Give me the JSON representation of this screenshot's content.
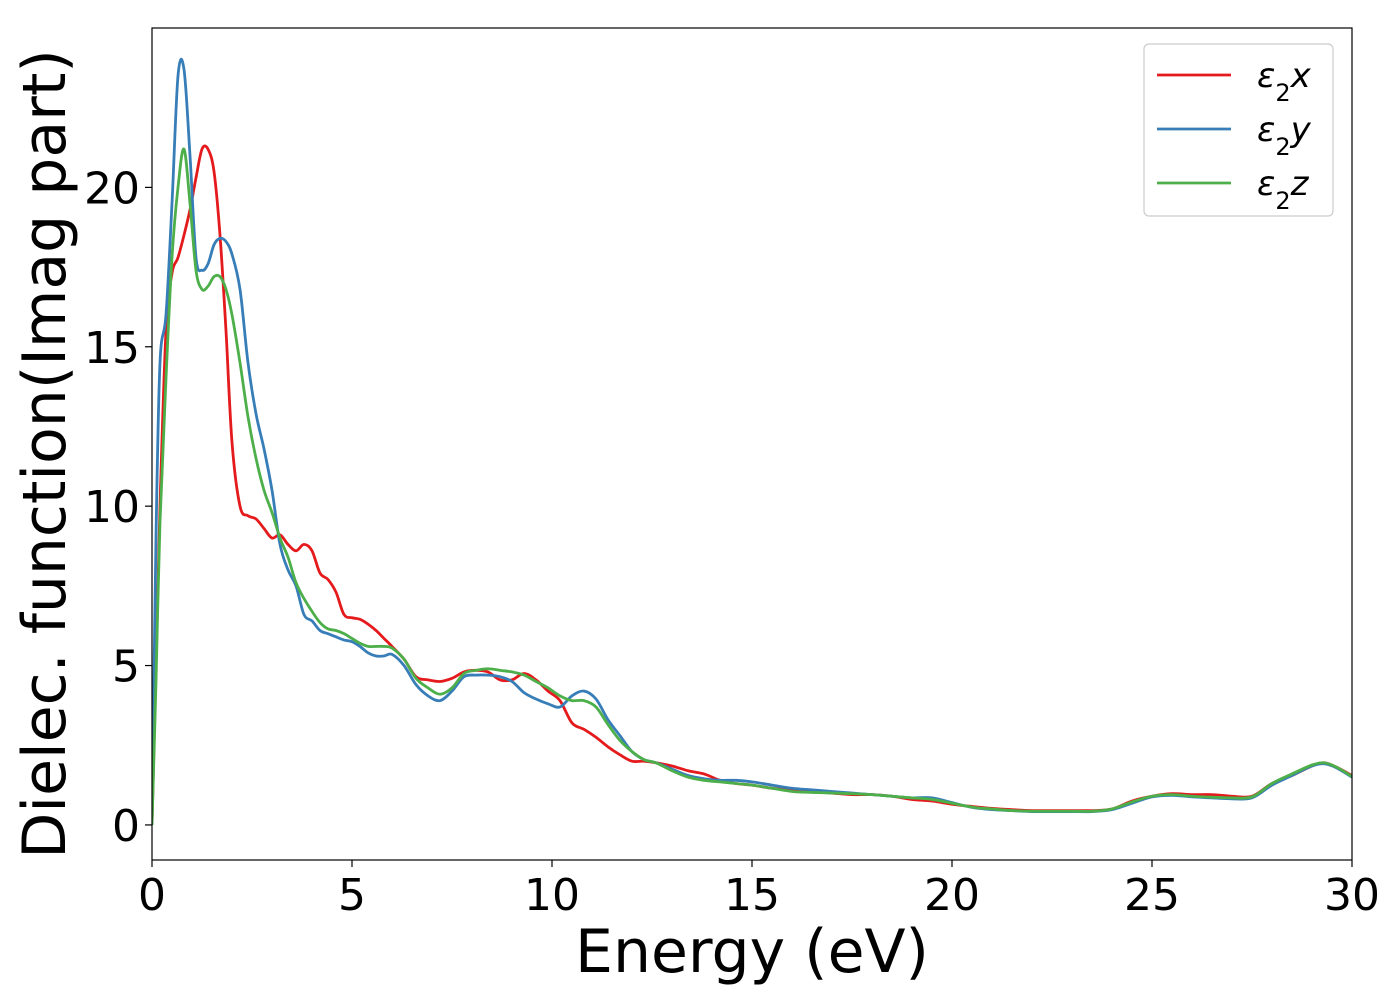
{
  "chart_data": {
    "type": "line",
    "xlabel": "Energy (eV)",
    "ylabel": "Dielec. function(Imag part)",
    "xlim": [
      0,
      30
    ],
    "ylim": [
      -1.1,
      25
    ],
    "xticks": [
      0,
      5,
      10,
      15,
      20,
      25,
      30
    ],
    "yticks": [
      0,
      5,
      10,
      15,
      20
    ],
    "grid": false,
    "legend_position": "top-right",
    "series": [
      {
        "name": "ε₂x",
        "legend": {
          "base": "ε",
          "sub": "2",
          "var": "x"
        },
        "color": "#e41a1c",
        "x": [
          0,
          0.1,
          0.2,
          0.35,
          0.5,
          0.65,
          0.8,
          0.95,
          1.1,
          1.25,
          1.4,
          1.55,
          1.7,
          1.85,
          2.0,
          2.2,
          2.4,
          2.6,
          2.8,
          3.0,
          3.2,
          3.4,
          3.6,
          3.8,
          4.0,
          4.2,
          4.4,
          4.6,
          4.8,
          5.0,
          5.2,
          5.4,
          5.6,
          5.8,
          6.0,
          6.3,
          6.6,
          6.9,
          7.2,
          7.5,
          7.8,
          8.1,
          8.4,
          8.7,
          9.0,
          9.3,
          9.6,
          9.9,
          10.2,
          10.5,
          10.8,
          11.1,
          11.4,
          11.7,
          12.0,
          12.3,
          12.6,
          13.0,
          13.4,
          13.8,
          14.2,
          14.6,
          15.0,
          15.5,
          16.0,
          16.5,
          17.0,
          17.5,
          18.0,
          18.5,
          19.0,
          19.5,
          20.0,
          20.5,
          21.0,
          21.5,
          22.0,
          22.5,
          23.0,
          23.5,
          24.0,
          24.5,
          25.0,
          25.5,
          26.0,
          26.5,
          27.0,
          27.5,
          28.0,
          28.5,
          29.0,
          29.3,
          29.6,
          30.0
        ],
        "y": [
          0,
          5,
          10,
          15.5,
          17.3,
          17.8,
          18.5,
          19.3,
          20.3,
          21.2,
          21.2,
          20.5,
          18.5,
          15.5,
          12.0,
          10.0,
          9.7,
          9.6,
          9.3,
          9.0,
          9.1,
          8.8,
          8.6,
          8.8,
          8.6,
          7.9,
          7.7,
          7.3,
          6.6,
          6.5,
          6.45,
          6.3,
          6.1,
          5.85,
          5.6,
          5.2,
          4.65,
          4.55,
          4.5,
          4.6,
          4.8,
          4.85,
          4.8,
          4.55,
          4.55,
          4.75,
          4.55,
          4.2,
          3.9,
          3.2,
          3.0,
          2.75,
          2.45,
          2.2,
          2.0,
          2.0,
          1.95,
          1.85,
          1.7,
          1.6,
          1.4,
          1.3,
          1.25,
          1.15,
          1.1,
          1.05,
          1.0,
          0.95,
          0.95,
          0.9,
          0.8,
          0.75,
          0.65,
          0.58,
          0.52,
          0.48,
          0.45,
          0.45,
          0.45,
          0.45,
          0.5,
          0.75,
          0.9,
          0.98,
          0.95,
          0.95,
          0.9,
          0.9,
          1.3,
          1.55,
          1.85,
          1.95,
          1.82,
          1.55
        ]
      },
      {
        "name": "ε₂y",
        "legend": {
          "base": "ε",
          "sub": "2",
          "var": "y"
        },
        "color": "#377eb8",
        "x": [
          0,
          0.1,
          0.2,
          0.35,
          0.5,
          0.65,
          0.8,
          0.95,
          1.1,
          1.25,
          1.4,
          1.55,
          1.7,
          1.85,
          2.0,
          2.2,
          2.4,
          2.6,
          2.8,
          3.0,
          3.2,
          3.4,
          3.6,
          3.8,
          4.0,
          4.2,
          4.4,
          4.6,
          4.8,
          5.0,
          5.2,
          5.4,
          5.6,
          5.8,
          6.0,
          6.3,
          6.6,
          6.9,
          7.2,
          7.5,
          7.8,
          8.1,
          8.4,
          8.7,
          9.0,
          9.3,
          9.6,
          9.9,
          10.2,
          10.5,
          10.8,
          11.1,
          11.4,
          11.7,
          12.0,
          12.3,
          12.6,
          13.0,
          13.4,
          13.8,
          14.2,
          14.6,
          15.0,
          15.5,
          16.0,
          16.5,
          17.0,
          17.5,
          18.0,
          18.5,
          19.0,
          19.5,
          20.0,
          20.5,
          21.0,
          21.5,
          22.0,
          22.5,
          23.0,
          23.5,
          24.0,
          24.5,
          25.0,
          25.5,
          26.0,
          26.5,
          27.0,
          27.5,
          28.0,
          28.5,
          29.0,
          29.3,
          29.6,
          30.0
        ],
        "y": [
          0,
          9,
          14.5,
          16.0,
          19.5,
          23.5,
          23.7,
          21.0,
          17.8,
          17.4,
          17.6,
          18.2,
          18.4,
          18.3,
          17.9,
          16.8,
          14.5,
          12.9,
          11.8,
          10.5,
          8.8,
          8.0,
          7.5,
          6.6,
          6.4,
          6.1,
          6.0,
          5.9,
          5.8,
          5.75,
          5.6,
          5.4,
          5.3,
          5.3,
          5.35,
          5.0,
          4.4,
          4.05,
          3.9,
          4.2,
          4.65,
          4.7,
          4.7,
          4.65,
          4.5,
          4.15,
          3.95,
          3.8,
          3.7,
          4.05,
          4.2,
          3.95,
          3.3,
          2.8,
          2.3,
          2.05,
          1.95,
          1.75,
          1.55,
          1.45,
          1.4,
          1.4,
          1.35,
          1.25,
          1.15,
          1.1,
          1.05,
          1.0,
          0.95,
          0.9,
          0.85,
          0.85,
          0.7,
          0.55,
          0.48,
          0.45,
          0.42,
          0.42,
          0.42,
          0.42,
          0.48,
          0.68,
          0.88,
          0.93,
          0.88,
          0.85,
          0.82,
          0.85,
          1.25,
          1.55,
          1.85,
          1.92,
          1.8,
          1.5
        ]
      },
      {
        "name": "ε₂z",
        "legend": {
          "base": "ε",
          "sub": "2",
          "var": "z"
        },
        "color": "#4daf4a",
        "x": [
          0,
          0.1,
          0.2,
          0.35,
          0.5,
          0.65,
          0.8,
          0.95,
          1.1,
          1.25,
          1.4,
          1.55,
          1.7,
          1.85,
          2.0,
          2.2,
          2.4,
          2.6,
          2.8,
          3.0,
          3.2,
          3.4,
          3.6,
          3.8,
          4.0,
          4.2,
          4.4,
          4.6,
          4.8,
          5.0,
          5.2,
          5.4,
          5.6,
          5.8,
          6.0,
          6.3,
          6.6,
          6.9,
          7.2,
          7.5,
          7.8,
          8.1,
          8.4,
          8.7,
          9.0,
          9.3,
          9.6,
          9.9,
          10.2,
          10.5,
          10.8,
          11.1,
          11.4,
          11.7,
          12.0,
          12.3,
          12.6,
          13.0,
          13.4,
          13.8,
          14.2,
          14.6,
          15.0,
          15.5,
          16.0,
          16.5,
          17.0,
          17.5,
          18.0,
          18.5,
          19.0,
          19.5,
          20.0,
          20.5,
          21.0,
          21.5,
          22.0,
          22.5,
          23.0,
          23.5,
          24.0,
          24.5,
          25.0,
          25.5,
          26.0,
          26.5,
          27.0,
          27.5,
          28.0,
          28.5,
          29.0,
          29.3,
          29.6,
          30.0
        ],
        "y": [
          0,
          4.5,
          9.5,
          14.0,
          17.8,
          20.0,
          21.2,
          19.5,
          17.4,
          16.8,
          16.9,
          17.2,
          17.2,
          16.8,
          16.0,
          14.5,
          12.8,
          11.5,
          10.5,
          9.8,
          9.0,
          8.4,
          7.6,
          7.1,
          6.7,
          6.35,
          6.15,
          6.1,
          6.0,
          5.85,
          5.7,
          5.6,
          5.6,
          5.6,
          5.55,
          5.2,
          4.6,
          4.3,
          4.1,
          4.3,
          4.75,
          4.85,
          4.9,
          4.85,
          4.8,
          4.7,
          4.5,
          4.3,
          4.05,
          3.9,
          3.9,
          3.7,
          3.15,
          2.65,
          2.3,
          2.05,
          1.95,
          1.7,
          1.5,
          1.4,
          1.35,
          1.3,
          1.25,
          1.15,
          1.05,
          1.02,
          1.0,
          0.98,
          0.95,
          0.9,
          0.85,
          0.8,
          0.68,
          0.56,
          0.5,
          0.45,
          0.43,
          0.43,
          0.43,
          0.43,
          0.5,
          0.72,
          0.9,
          0.95,
          0.9,
          0.87,
          0.85,
          0.88,
          1.3,
          1.6,
          1.88,
          1.95,
          1.82,
          1.52
        ]
      }
    ]
  }
}
